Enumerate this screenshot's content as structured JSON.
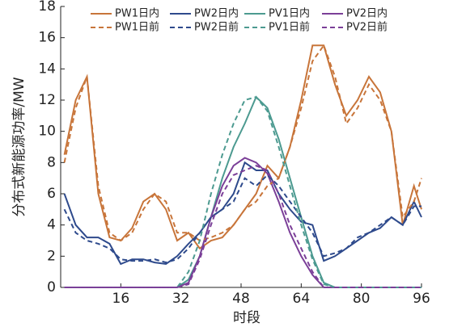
{
  "chart_data": {
    "type": "line",
    "xlabel": "时段",
    "ylabel": "分布式新能源功率/MW",
    "x": [
      1,
      4,
      7,
      10,
      13,
      16,
      19,
      22,
      25,
      28,
      31,
      34,
      37,
      40,
      43,
      46,
      49,
      52,
      55,
      58,
      61,
      64,
      67,
      70,
      73,
      76,
      79,
      82,
      85,
      88,
      91,
      94,
      96
    ],
    "xlim": [
      0,
      96
    ],
    "xticks": [
      16,
      32,
      48,
      64,
      80,
      96
    ],
    "ylim": [
      0,
      18
    ],
    "yticks": [
      0,
      2,
      4,
      6,
      8,
      10,
      12,
      14,
      16,
      18
    ],
    "series": [
      {
        "name": "PW1日内",
        "color": "#c8753a",
        "linestyle": "solid",
        "values": [
          8.5,
          12,
          13.5,
          6,
          3.2,
          3,
          3.8,
          5.5,
          6,
          5,
          3,
          3.5,
          2.5,
          3,
          3.2,
          4,
          5,
          6,
          7.8,
          7,
          9,
          12,
          15.5,
          15.5,
          13,
          11,
          12,
          13.5,
          12.5,
          10,
          4,
          6.5,
          5
        ]
      },
      {
        "name": "PW2日内",
        "color": "#2e4a8c",
        "linestyle": "solid",
        "values": [
          6,
          4,
          3.2,
          3.2,
          2.8,
          1.5,
          1.8,
          1.8,
          1.6,
          1.5,
          2,
          2.8,
          3.5,
          4.5,
          5,
          6,
          8,
          7.5,
          7.5,
          6,
          5,
          4.2,
          4,
          1.7,
          2,
          2.5,
          3,
          3.5,
          3.8,
          4.5,
          4,
          5.5,
          4.5
        ]
      },
      {
        "name": "PV1日内",
        "color": "#4c9a90",
        "linestyle": "solid",
        "values": [
          0,
          0,
          0,
          0,
          0,
          0,
          0,
          0,
          0,
          0,
          0,
          0.5,
          2,
          4.5,
          7,
          9,
          10.5,
          12.2,
          11.5,
          9.5,
          7,
          4.5,
          2,
          0.3,
          0,
          0,
          0,
          0,
          0,
          0,
          0,
          0,
          0
        ]
      },
      {
        "name": "PV2日内",
        "color": "#7b3f98",
        "linestyle": "solid",
        "values": [
          0,
          0,
          0,
          0,
          0,
          0,
          0,
          0,
          0,
          0,
          0,
          0.3,
          2,
          4.5,
          6.5,
          7.8,
          8.3,
          8,
          7.3,
          5.5,
          3.5,
          2,
          0.8,
          0,
          0,
          0,
          0,
          0,
          0,
          0,
          0,
          0,
          0
        ]
      },
      {
        "name": "PW1日前",
        "color": "#c8753a",
        "linestyle": "dashed",
        "values": [
          8,
          11.5,
          13.5,
          6.5,
          3.5,
          3,
          3.5,
          5,
          6,
          5.5,
          3.5,
          3.5,
          3,
          3.2,
          3.5,
          4,
          5,
          5.5,
          6.5,
          7,
          9,
          11.5,
          14.5,
          15.5,
          13.5,
          10.5,
          11.5,
          13,
          12,
          10,
          4.5,
          5.5,
          7
        ]
      },
      {
        "name": "PW2日前",
        "color": "#2e4a8c",
        "linestyle": "dashed",
        "values": [
          5,
          3.5,
          3,
          2.8,
          2.5,
          1.8,
          1.7,
          1.7,
          1.8,
          1.6,
          1.8,
          2.5,
          3.5,
          4.5,
          5,
          5.5,
          7,
          6.5,
          7.2,
          6.5,
          5.5,
          4.5,
          3.5,
          2,
          2.2,
          2.5,
          3.2,
          3.5,
          4,
          4.5,
          4,
          5.2,
          5.2
        ]
      },
      {
        "name": "PV1日前",
        "color": "#4c9a90",
        "linestyle": "dashed",
        "values": [
          0,
          0,
          0,
          0,
          0,
          0,
          0,
          0,
          0,
          0,
          0,
          1,
          3,
          6,
          8.5,
          10.5,
          12,
          12.2,
          11.3,
          9,
          6.5,
          4,
          1.8,
          0.2,
          0,
          0,
          0,
          0,
          0,
          0,
          0,
          0,
          0
        ]
      },
      {
        "name": "PV2日前",
        "color": "#7b3f98",
        "linestyle": "dashed",
        "values": [
          0,
          0,
          0,
          0,
          0,
          0,
          0,
          0,
          0,
          0,
          0,
          0.2,
          1.8,
          4,
          6,
          7.2,
          7.5,
          7.8,
          7.5,
          6,
          4,
          2.5,
          1,
          0,
          0,
          0,
          0,
          0,
          0,
          0,
          0,
          0,
          0
        ]
      }
    ]
  }
}
